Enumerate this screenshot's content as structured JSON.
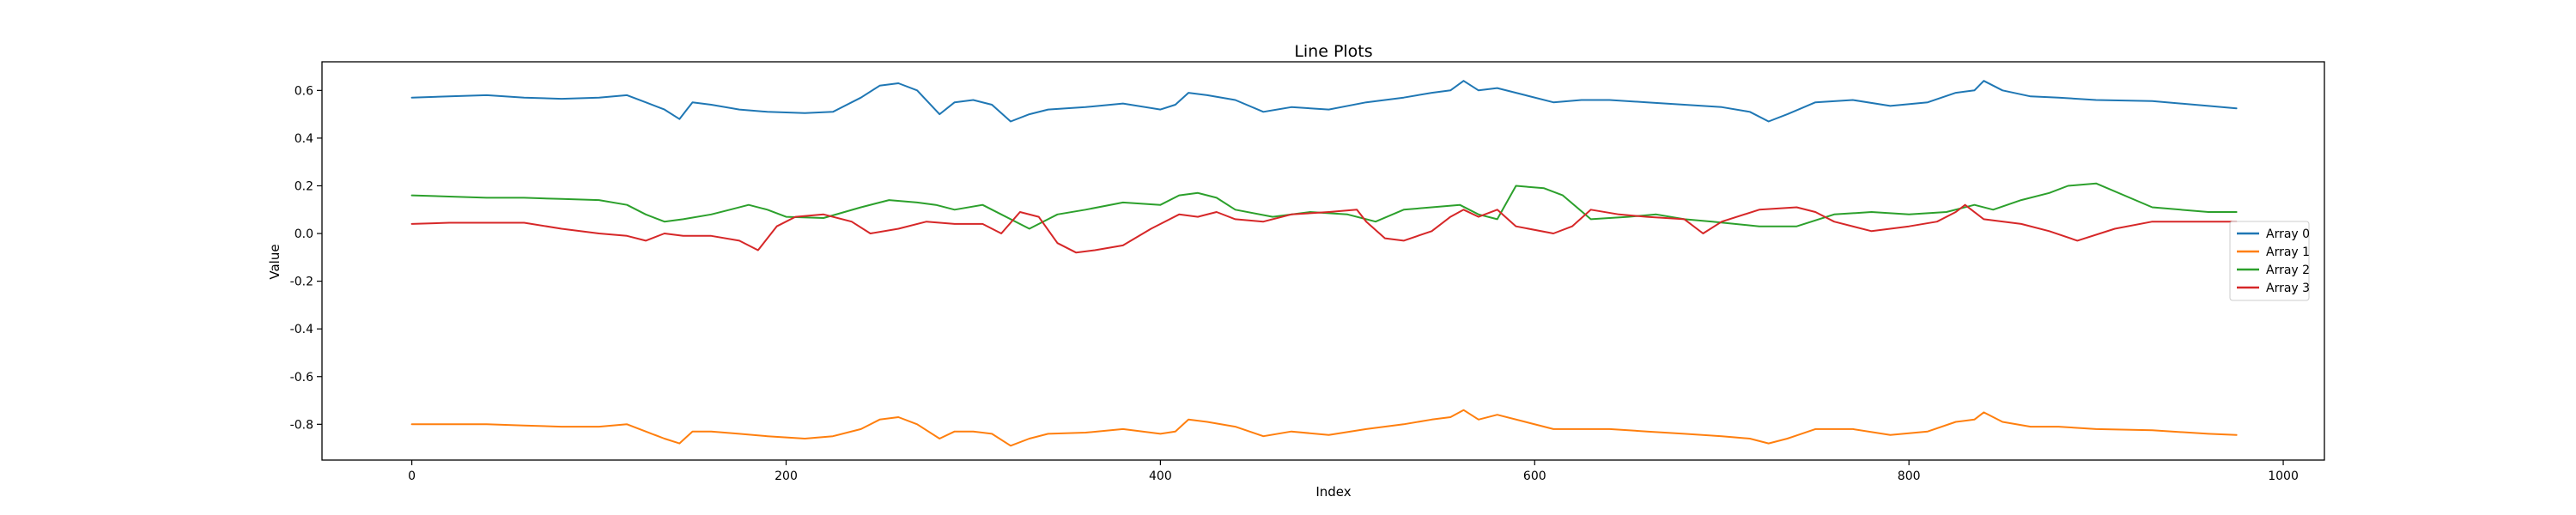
{
  "chart_data": {
    "type": "line",
    "title": "Line Plots",
    "xlabel": "Index",
    "ylabel": "Value",
    "xlim": [
      -48,
      1022
    ],
    "ylim": [
      -0.95,
      0.72
    ],
    "xticks": [
      0,
      200,
      400,
      600,
      800,
      1000
    ],
    "yticks": [
      0.6,
      0.4,
      0.2,
      0.0,
      -0.2,
      -0.4,
      -0.6,
      -0.8
    ],
    "grid": false,
    "legend_position": "right-center",
    "series": [
      {
        "name": "Array 0",
        "color": "#1f77b4",
        "x": [
          0,
          20,
          40,
          60,
          80,
          100,
          115,
          125,
          135,
          143,
          150,
          160,
          175,
          190,
          210,
          225,
          240,
          250,
          260,
          270,
          282,
          290,
          300,
          310,
          320,
          330,
          340,
          360,
          380,
          400,
          408,
          415,
          425,
          440,
          455,
          470,
          490,
          510,
          530,
          545,
          555,
          562,
          570,
          580,
          595,
          610,
          625,
          640,
          660,
          680,
          700,
          715,
          725,
          735,
          750,
          770,
          790,
          810,
          825,
          835,
          840,
          850,
          865,
          880,
          900,
          930,
          960,
          975
        ],
        "y": [
          0.57,
          0.575,
          0.58,
          0.57,
          0.565,
          0.57,
          0.58,
          0.55,
          0.52,
          0.48,
          0.55,
          0.54,
          0.52,
          0.51,
          0.505,
          0.51,
          0.57,
          0.62,
          0.63,
          0.6,
          0.5,
          0.55,
          0.56,
          0.54,
          0.47,
          0.5,
          0.52,
          0.53,
          0.545,
          0.52,
          0.54,
          0.59,
          0.58,
          0.56,
          0.51,
          0.53,
          0.52,
          0.55,
          0.57,
          0.59,
          0.6,
          0.64,
          0.6,
          0.61,
          0.58,
          0.55,
          0.56,
          0.56,
          0.55,
          0.54,
          0.53,
          0.51,
          0.47,
          0.5,
          0.55,
          0.56,
          0.535,
          0.55,
          0.59,
          0.6,
          0.64,
          0.6,
          0.575,
          0.57,
          0.56,
          0.555,
          0.535,
          0.525
        ]
      },
      {
        "name": "Array 1",
        "color": "#ff7f0e",
        "x": [
          0,
          20,
          40,
          60,
          80,
          100,
          115,
          125,
          135,
          143,
          150,
          160,
          175,
          190,
          210,
          225,
          240,
          250,
          260,
          270,
          282,
          290,
          300,
          310,
          320,
          330,
          340,
          360,
          380,
          400,
          408,
          415,
          425,
          440,
          455,
          470,
          490,
          510,
          530,
          545,
          555,
          562,
          570,
          580,
          595,
          610,
          625,
          640,
          660,
          680,
          700,
          715,
          725,
          735,
          750,
          770,
          790,
          810,
          825,
          835,
          840,
          850,
          865,
          880,
          900,
          930,
          960,
          975
        ],
        "y": [
          -0.8,
          -0.8,
          -0.8,
          -0.805,
          -0.81,
          -0.81,
          -0.8,
          -0.83,
          -0.86,
          -0.88,
          -0.83,
          -0.83,
          -0.84,
          -0.85,
          -0.86,
          -0.85,
          -0.82,
          -0.78,
          -0.77,
          -0.8,
          -0.86,
          -0.83,
          -0.83,
          -0.84,
          -0.89,
          -0.86,
          -0.84,
          -0.835,
          -0.82,
          -0.84,
          -0.83,
          -0.78,
          -0.79,
          -0.81,
          -0.85,
          -0.83,
          -0.845,
          -0.82,
          -0.8,
          -0.78,
          -0.77,
          -0.74,
          -0.78,
          -0.76,
          -0.79,
          -0.82,
          -0.82,
          -0.82,
          -0.83,
          -0.84,
          -0.85,
          -0.86,
          -0.88,
          -0.86,
          -0.82,
          -0.82,
          -0.845,
          -0.83,
          -0.79,
          -0.78,
          -0.75,
          -0.79,
          -0.81,
          -0.81,
          -0.82,
          -0.825,
          -0.84,
          -0.845
        ]
      },
      {
        "name": "Array 2",
        "color": "#2ca02c",
        "x": [
          0,
          20,
          40,
          60,
          80,
          100,
          115,
          125,
          135,
          145,
          160,
          170,
          180,
          190,
          200,
          220,
          240,
          255,
          270,
          280,
          290,
          305,
          315,
          330,
          345,
          360,
          380,
          400,
          410,
          420,
          430,
          440,
          460,
          480,
          500,
          515,
          530,
          545,
          560,
          570,
          580,
          590,
          605,
          615,
          630,
          650,
          665,
          680,
          695,
          720,
          740,
          760,
          780,
          800,
          820,
          835,
          845,
          860,
          875,
          885,
          900,
          930,
          960,
          975
        ],
        "y": [
          0.16,
          0.155,
          0.15,
          0.15,
          0.145,
          0.14,
          0.12,
          0.08,
          0.05,
          0.06,
          0.08,
          0.1,
          0.12,
          0.1,
          0.07,
          0.065,
          0.11,
          0.14,
          0.13,
          0.12,
          0.1,
          0.12,
          0.08,
          0.02,
          0.08,
          0.1,
          0.13,
          0.12,
          0.16,
          0.17,
          0.15,
          0.1,
          0.07,
          0.09,
          0.08,
          0.05,
          0.1,
          0.11,
          0.12,
          0.08,
          0.06,
          0.2,
          0.19,
          0.16,
          0.06,
          0.07,
          0.08,
          0.06,
          0.05,
          0.03,
          0.03,
          0.08,
          0.09,
          0.08,
          0.09,
          0.12,
          0.1,
          0.14,
          0.17,
          0.2,
          0.21,
          0.11,
          0.09,
          0.09
        ]
      },
      {
        "name": "Array 3",
        "color": "#d62728",
        "x": [
          0,
          20,
          40,
          60,
          80,
          100,
          115,
          125,
          135,
          145,
          160,
          175,
          185,
          195,
          205,
          220,
          235,
          245,
          260,
          275,
          290,
          305,
          315,
          325,
          335,
          345,
          355,
          365,
          380,
          395,
          410,
          420,
          430,
          440,
          455,
          470,
          490,
          505,
          510,
          520,
          530,
          545,
          555,
          562,
          570,
          580,
          590,
          610,
          620,
          630,
          645,
          660,
          680,
          690,
          700,
          720,
          740,
          750,
          760,
          780,
          800,
          815,
          825,
          830,
          840,
          860,
          875,
          890,
          910,
          930,
          960,
          975
        ],
        "y": [
          0.04,
          0.045,
          0.045,
          0.045,
          0.02,
          0.0,
          -0.01,
          -0.03,
          0.0,
          -0.01,
          -0.01,
          -0.03,
          -0.07,
          0.03,
          0.07,
          0.08,
          0.05,
          0.0,
          0.02,
          0.05,
          0.04,
          0.04,
          0.0,
          0.09,
          0.07,
          -0.04,
          -0.08,
          -0.07,
          -0.05,
          0.02,
          0.08,
          0.07,
          0.09,
          0.06,
          0.05,
          0.08,
          0.09,
          0.1,
          0.05,
          -0.02,
          -0.03,
          0.01,
          0.07,
          0.1,
          0.07,
          0.1,
          0.03,
          0.0,
          0.03,
          0.1,
          0.08,
          0.07,
          0.06,
          0.0,
          0.05,
          0.1,
          0.11,
          0.09,
          0.05,
          0.01,
          0.03,
          0.05,
          0.09,
          0.12,
          0.06,
          0.04,
          0.01,
          -0.03,
          0.02,
          0.05,
          0.05,
          0.05
        ]
      }
    ]
  }
}
